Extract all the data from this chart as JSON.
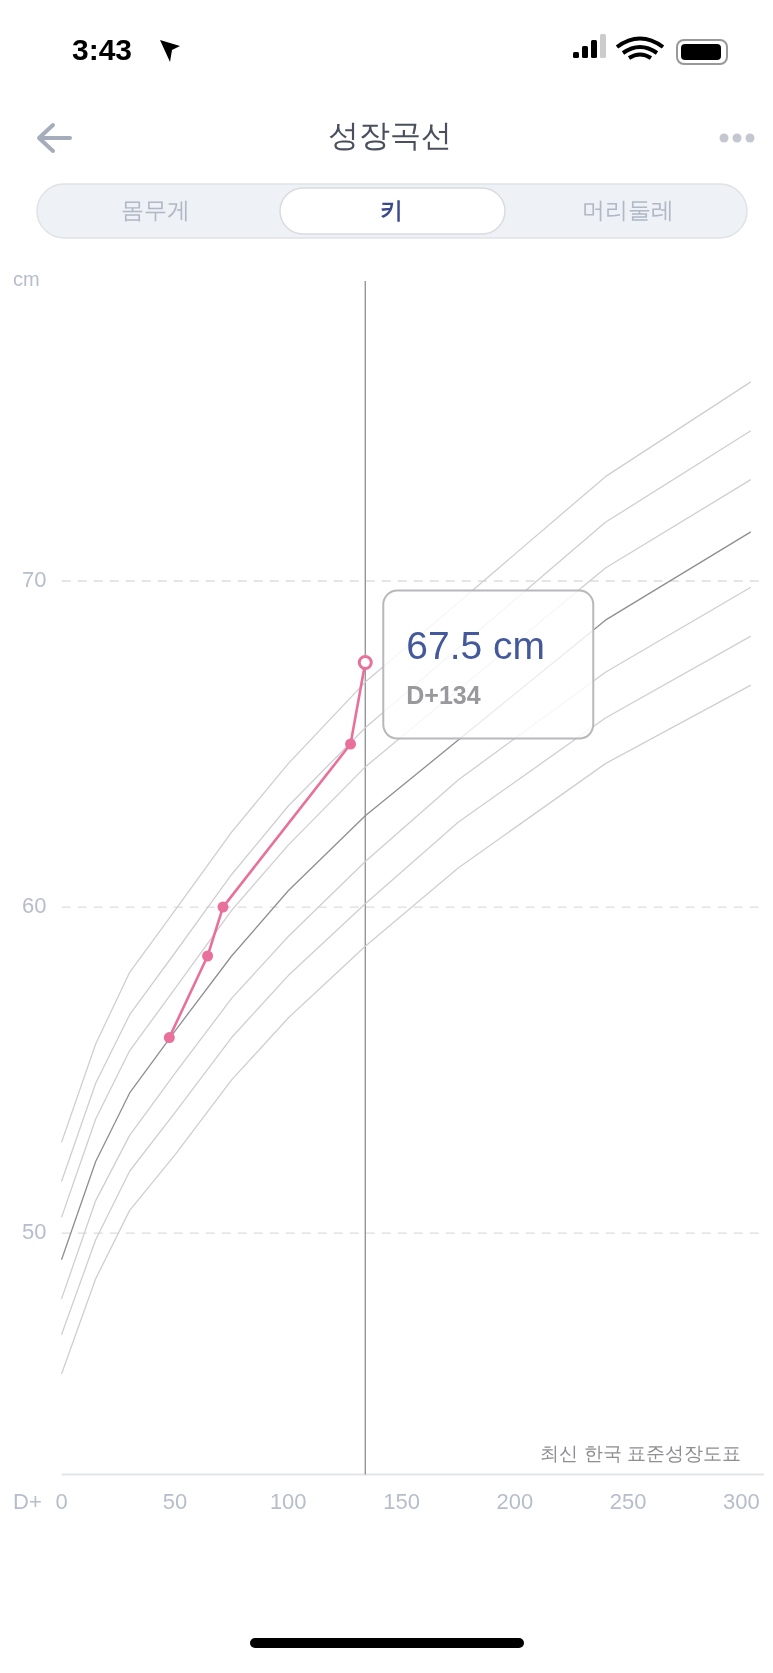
{
  "chart_data": {
    "type": "line",
    "title": "성장곡선",
    "xlabel": "D+",
    "ylabel": "cm",
    "xlim": [
      0,
      310
    ],
    "ylim": [
      42.6,
      79.2
    ],
    "xticks": [
      0,
      50,
      100,
      150,
      200,
      250,
      300
    ],
    "yticks": [
      50,
      60,
      70
    ],
    "grid": "y",
    "series": [
      {
        "color": "#cfcfd2",
        "x": [
          0,
          15,
          30,
          50,
          75,
          100,
          134,
          240,
          304
        ],
        "values": [
          52.8,
          55.8,
          58.0,
          59.9,
          62.3,
          64.4,
          66.9,
          73.2,
          76.1
        ]
      },
      {
        "color": "#cfcfd2",
        "x": [
          0,
          15,
          30,
          50,
          75,
          100,
          134,
          240,
          304
        ],
        "values": [
          51.6,
          54.6,
          56.7,
          58.6,
          61.0,
          63.1,
          65.5,
          71.8,
          74.6
        ]
      },
      {
        "color": "#cfcfd2",
        "x": [
          0,
          15,
          30,
          50,
          75,
          100,
          134,
          240,
          304
        ],
        "values": [
          50.5,
          53.5,
          55.6,
          57.5,
          59.9,
          61.9,
          64.3,
          70.4,
          73.1
        ]
      },
      {
        "color": "#8e8e93",
        "x": [
          0,
          15,
          30,
          50,
          75,
          100,
          134,
          240,
          304
        ],
        "values": [
          49.2,
          52.2,
          54.3,
          56.2,
          58.5,
          60.5,
          62.8,
          68.8,
          71.5
        ]
      },
      {
        "color": "#cfcfd2",
        "x": [
          0,
          15,
          30,
          50,
          75,
          100,
          134,
          175,
          240,
          304
        ],
        "values": [
          48.0,
          51.0,
          53.0,
          54.9,
          57.2,
          59.1,
          61.4,
          63.9,
          67.2,
          69.8
        ]
      },
      {
        "color": "#cfcfd2",
        "x": [
          0,
          15,
          30,
          50,
          75,
          100,
          134,
          175,
          240,
          304
        ],
        "values": [
          46.9,
          49.8,
          51.9,
          53.7,
          56.0,
          57.9,
          60.1,
          62.6,
          65.8,
          68.3
        ]
      },
      {
        "color": "#cfcfd2",
        "x": [
          0,
          15,
          30,
          50,
          75,
          100,
          134,
          175,
          240,
          304
        ],
        "values": [
          45.7,
          48.6,
          50.7,
          52.4,
          54.7,
          56.6,
          58.8,
          61.2,
          64.4,
          66.8
        ]
      },
      {
        "color": "#e8709a",
        "marker": "circle",
        "x": [
          47.5,
          64.4,
          71.2,
          127.5,
          134
        ],
        "values": [
          56.0,
          58.5,
          60.0,
          65.0,
          67.5
        ]
      }
    ],
    "ref_lines": [
      {
        "axis": "x",
        "value": 134,
        "color": "#8e8e93"
      }
    ],
    "annotations": [
      {
        "text": "67.5 cm",
        "x": 134,
        "y": 67.5
      },
      {
        "text": "D+134",
        "x": 134,
        "y": 67.5
      },
      "최신 한국 표준성장도표",
      "3:43",
      "몸무게",
      "키",
      "머리둘레"
    ]
  }
}
